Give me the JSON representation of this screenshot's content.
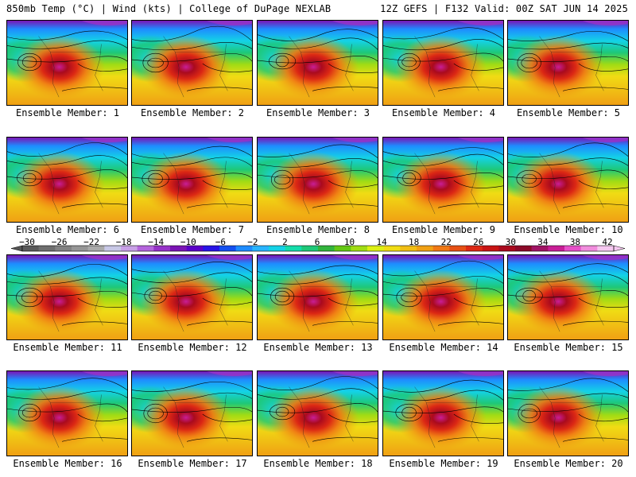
{
  "header": {
    "left_title": "850mb Temp (°C) | Wind (kts) | College of DuPage NEXLAB",
    "right_title": "12Z GEFS | F132 Valid: 00Z SAT JUN 14 2025"
  },
  "members": [
    "Ensemble Member: 1",
    "Ensemble Member: 2",
    "Ensemble Member: 3",
    "Ensemble Member: 4",
    "Ensemble Member: 5",
    "Ensemble Member: 6",
    "Ensemble Member: 7",
    "Ensemble Member: 8",
    "Ensemble Member: 9",
    "Ensemble Member: 10",
    "Ensemble Member: 11",
    "Ensemble Member: 12",
    "Ensemble Member: 13",
    "Ensemble Member: 14",
    "Ensemble Member: 15",
    "Ensemble Member: 16",
    "Ensemble Member: 17",
    "Ensemble Member: 18",
    "Ensemble Member: 19",
    "Ensemble Member: 20"
  ],
  "colorbar": {
    "tick_labels": [
      "−30",
      "−26",
      "−22",
      "−18",
      "−14",
      "−10",
      "−6",
      "−2",
      "2",
      "6",
      "10",
      "14",
      "18",
      "22",
      "26",
      "30",
      "34",
      "38",
      "42"
    ],
    "colors": [
      "#5a5a5a",
      "#6e6e6e",
      "#828282",
      "#969696",
      "#aaaaaa",
      "#c8c8e6",
      "#c8a0e6",
      "#b464dc",
      "#9632c8",
      "#7a14b4",
      "#5a00c8",
      "#2814e6",
      "#1450f0",
      "#1e8cff",
      "#28b4ff",
      "#14d2e6",
      "#14dcaa",
      "#1ec878",
      "#32b43c",
      "#64c814",
      "#a0dc14",
      "#dcf014",
      "#f0dc14",
      "#f0be14",
      "#f0a014",
      "#f07814",
      "#e65014",
      "#dc2814",
      "#c81414",
      "#aa0a1e",
      "#8c0a28",
      "#a01464",
      "#c81e96",
      "#e650c8",
      "#f08cdc",
      "#f5c8f0"
    ]
  }
}
